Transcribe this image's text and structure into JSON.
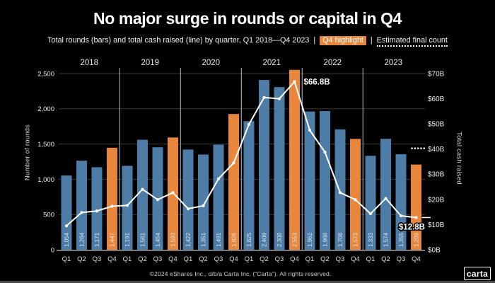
{
  "title": "No major surge in rounds or capital in Q4",
  "subtitle": {
    "prefix": "Total rounds (bars) and total cash raised (line) by quarter, Q1 2018—Q4 2023",
    "divider": "|",
    "q4_highlight_label": "Q4 highlight",
    "estimated_label": "Estimated final count"
  },
  "footer": {
    "copyright": "©2024 eShares Inc., d/b/a Carta Inc. (“Carta”). All rights reserved."
  },
  "logo_text": "carta",
  "colors": {
    "background": "#000000",
    "bar_blue": "#4d7da6",
    "bar_q4_orange": "#e8873c",
    "line": "#ffffff",
    "chip_orange": "#e8873c",
    "gridline": "#373737",
    "year_separator": "#bdbdbd",
    "axis_line": "#999999",
    "bar_value_text": "#e7edf3"
  },
  "chart_data": {
    "type": "bar+line combo",
    "title": "No major surge in rounds or capital in Q4",
    "years": [
      "2018",
      "2019",
      "2020",
      "2021",
      "2022",
      "2023"
    ],
    "categories": [
      "Q1",
      "Q2",
      "Q3",
      "Q4",
      "Q1",
      "Q2",
      "Q3",
      "Q4",
      "Q1",
      "Q2",
      "Q3",
      "Q4",
      "Q1",
      "Q2",
      "Q3",
      "Q4",
      "Q1",
      "Q2",
      "Q3",
      "Q4",
      "Q1",
      "Q2",
      "Q3",
      "Q4"
    ],
    "series": [
      {
        "name": "Total rounds",
        "type": "bar",
        "axis": "left",
        "values": [
          1054,
          1264,
          1171,
          1447,
          1191,
          1561,
          1454,
          1593,
          1422,
          1351,
          1491,
          1926,
          1825,
          2409,
          2308,
          2553,
          1962,
          1968,
          1708,
          1573,
          1333,
          1574,
          1355,
          1209
        ],
        "labels": [
          "1,054",
          "1,264",
          "1,171",
          "1,447",
          "1,191",
          "1,561",
          "1,454",
          "1,593",
          "1,422",
          "1,351",
          "1,491",
          "1,926",
          "1,825",
          "2,409",
          "2,308",
          "2,553",
          "1,962",
          "1,968",
          "1,708",
          "1,573",
          "1,333",
          "1,574",
          "1,355",
          "1,209"
        ],
        "q4_highlighted": true
      },
      {
        "name": "Total cash raised",
        "type": "line",
        "axis": "right",
        "unit": "$B",
        "values": [
          9.5,
          14.8,
          15.4,
          17.3,
          17.6,
          24.0,
          19.9,
          22.7,
          16.3,
          17.5,
          28.2,
          34.5,
          49.8,
          60.5,
          60.0,
          66.8,
          47.5,
          38.8,
          22.7,
          19.9,
          14.3,
          20.4,
          13.5,
          12.8
        ]
      }
    ],
    "left_axis": {
      "label": "Number of rounds",
      "min": 0,
      "max": 2500,
      "tick_step": 500,
      "ticks": [
        "0",
        "500",
        "1,000",
        "1,500",
        "2,000",
        "2,500"
      ]
    },
    "right_axis": {
      "label": "Total cash raised",
      "min": 0,
      "max": 70,
      "tick_step": 10,
      "ticks": [
        "$0B",
        "$10B",
        "$20B",
        "$30B",
        "$40B",
        "$50B",
        "$60B",
        "$70B"
      ]
    },
    "annotations": [
      {
        "text": "$66.8B",
        "series": "Total cash raised",
        "year": "2021",
        "quarter": "Q4",
        "value": 66.8,
        "index": 15
      },
      {
        "text": "$12.8B",
        "series": "Total cash raised",
        "year": "2023",
        "quarter": "Q4",
        "value": 12.8,
        "index": 23
      }
    ],
    "estimated_final_count": {
      "applies_to": "Q4 2023 total rounds",
      "value_rounds": 1440,
      "style": "dotted"
    },
    "grid": "horizontal gridlines every 500 rounds, vertical separators between years",
    "legend_position": "in subtitle"
  }
}
